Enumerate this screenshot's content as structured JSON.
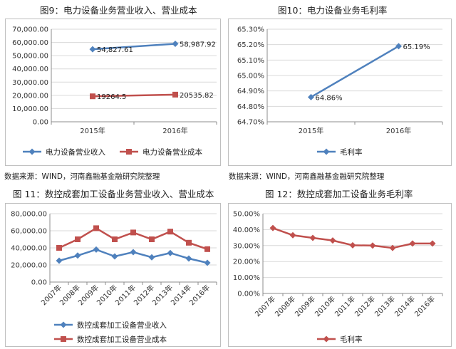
{
  "titles": {
    "chart1": "图9：电力设备业务营业收入、营业成本",
    "chart2": "图10：电力设备业务毛利率",
    "chart3": "图 11：数控成套加工设备业务营业收入、营业成本",
    "chart4": "图 12：数控成套加工设备业务毛利率"
  },
  "sources": {
    "left": "数据来源：WIND，河南鑫融基金融研究院整理",
    "right": "数据来源：WIND，河南鑫融基金融研究院整理"
  },
  "colors": {
    "blue": "#4f81bd",
    "red": "#c0504d",
    "grid": "#d9d9d9"
  },
  "chart_data": [
    {
      "type": "line",
      "categories": [
        "2015年",
        "2016年"
      ],
      "ylim": [
        0,
        70000
      ],
      "yticks": [
        "0.00",
        "10,000.00",
        "20,000.00",
        "30,000.00",
        "40,000.00",
        "50,000.00",
        "60,000.00",
        "70,000.00"
      ],
      "legend": "bottom",
      "series": [
        {
          "name": "电力设备营业收入",
          "values": [
            54827.61,
            58987.92
          ],
          "labels": [
            "54,827.61",
            "58,987.92"
          ],
          "color": "#4f81bd",
          "marker": "diamond"
        },
        {
          "name": "电力设备营业成本",
          "values": [
            19264.5,
            20535.82
          ],
          "labels": [
            "19264.5",
            "20535.82"
          ],
          "color": "#c0504d",
          "marker": "square"
        }
      ]
    },
    {
      "type": "line",
      "categories": [
        "2015年",
        "2016年"
      ],
      "ylim": [
        64.7,
        65.3
      ],
      "yticks": [
        "64.70%",
        "64.80%",
        "64.90%",
        "65.00%",
        "65.10%",
        "65.20%",
        "65.30%"
      ],
      "legend": "bottom",
      "series": [
        {
          "name": "毛利率",
          "values": [
            64.86,
            65.19
          ],
          "labels": [
            "64.86%",
            "65.19%"
          ],
          "color": "#4f81bd",
          "marker": "diamond"
        }
      ]
    },
    {
      "type": "line",
      "categories": [
        "2007年",
        "2008年",
        "2009年",
        "2010年",
        "2011年",
        "2012年",
        "2013年",
        "2014年",
        "2016年"
      ],
      "ylim": [
        0,
        80000
      ],
      "yticks": [
        "0.00",
        "20,000.00",
        "40,000.00",
        "60,000.00",
        "80,000.00"
      ],
      "legend": "bottom",
      "series": [
        {
          "name": "数控成套加工设备营业收入",
          "values": [
            25000,
            31000,
            38000,
            30000,
            35000,
            29000,
            34000,
            27500,
            22500
          ],
          "color": "#4f81bd",
          "marker": "diamond"
        },
        {
          "name": "数控成套加工设备营业成本",
          "values": [
            40000,
            50000,
            63000,
            50000,
            58000,
            50000,
            59000,
            46000,
            38500
          ],
          "color": "#c0504d",
          "marker": "square"
        }
      ]
    },
    {
      "type": "line",
      "categories": [
        "2007年",
        "2008年",
        "2009年",
        "2010年",
        "2011年",
        "2012年",
        "2013年",
        "2014年",
        "2016年"
      ],
      "ylim": [
        0,
        50
      ],
      "yticks": [
        "0.00%",
        "10.00%",
        "20.00%",
        "30.00%",
        "40.00%",
        "50.00%"
      ],
      "legend": "bottom",
      "series": [
        {
          "name": "毛利率",
          "values": [
            41.0,
            36.5,
            34.8,
            33.2,
            30.2,
            30.0,
            28.5,
            31.3,
            31.3
          ],
          "color": "#c0504d",
          "marker": "diamond"
        }
      ]
    }
  ]
}
